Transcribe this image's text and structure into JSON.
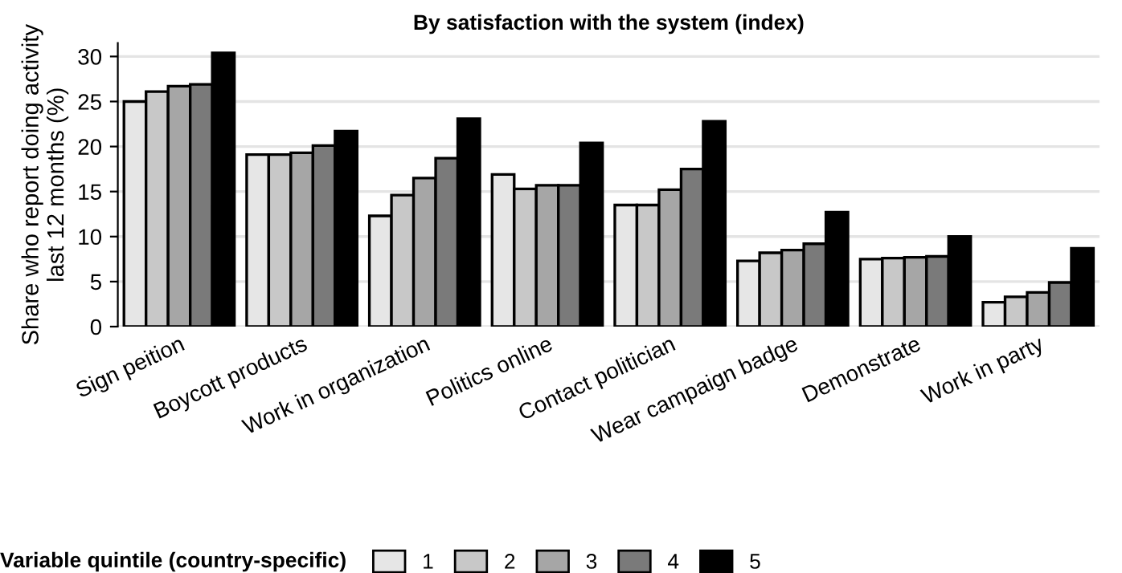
{
  "chart_data": {
    "type": "bar",
    "title": "By satisfaction with the system (index)",
    "ylabel": "Share who report doing activity\nlast 12 months (%)",
    "legend_title": "Variable quintile (country-specific)",
    "categories": [
      "Sign peition",
      "Boycott products",
      "Work in organization",
      "Politics online",
      "Contact politician",
      "Wear campaign badge",
      "Demonstrate",
      "Work in party"
    ],
    "series": [
      {
        "name": "1",
        "color": "#e6e6e6",
        "values": [
          25.0,
          19.1,
          12.3,
          16.9,
          13.5,
          7.3,
          7.5,
          2.7
        ]
      },
      {
        "name": "2",
        "color": "#c8c8c8",
        "values": [
          26.1,
          19.1,
          14.6,
          15.3,
          13.5,
          8.2,
          7.6,
          3.3
        ]
      },
      {
        "name": "3",
        "color": "#a6a6a6",
        "values": [
          26.7,
          19.3,
          16.5,
          15.7,
          15.2,
          8.5,
          7.7,
          3.8
        ]
      },
      {
        "name": "4",
        "color": "#7a7a7a",
        "values": [
          26.9,
          20.1,
          18.7,
          15.7,
          17.5,
          9.2,
          7.8,
          4.9
        ]
      },
      {
        "name": "5",
        "color": "#000000",
        "values": [
          30.4,
          21.7,
          23.1,
          20.4,
          22.8,
          12.7,
          10.0,
          8.7
        ]
      }
    ],
    "ylim": [
      0,
      31.5
    ],
    "yticks": [
      0,
      5,
      10,
      15,
      20,
      25,
      30
    ],
    "grid": "y",
    "legend": "bottom"
  }
}
